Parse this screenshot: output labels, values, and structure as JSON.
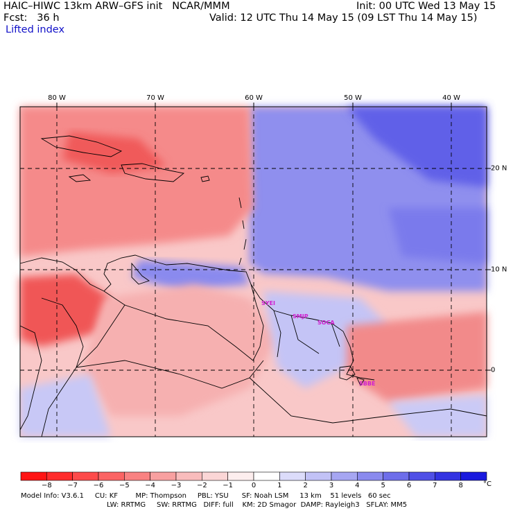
{
  "header": {
    "title": "HAIC–HIWC 13km ARW–GFS init   NCAR/MMM",
    "init": "Init: 00 UTC Wed 13 May 15",
    "forecast": "Fcst:   36 h",
    "valid": "Valid: 12 UTC Thu 14 May 15 (09 LST Thu 14 May 15)",
    "field": "Lifted index"
  },
  "map": {
    "lon_labels": [
      "80 W",
      "70 W",
      "60 W",
      "50 W",
      "40 W"
    ],
    "lat_labels": [
      "20 N",
      "10 N",
      "0"
    ],
    "stations": [
      "SYEI",
      "SMJP",
      "SOCA",
      "SBBE"
    ]
  },
  "colorbar": {
    "ticks": [
      "−8",
      "−7",
      "−6",
      "−5",
      "−4",
      "−3",
      "−2",
      "−1",
      "0",
      "1",
      "2",
      "3",
      "4",
      "5",
      "6",
      "7",
      "8"
    ],
    "unit": "°C",
    "colors": [
      "#ff1414",
      "#ff2c2c",
      "#fd4a4a",
      "#fb6464",
      "#f98282",
      "#f8a0a0",
      "#f9bcbc",
      "#fbd6d6",
      "#fdeeee",
      "#ffffff",
      "#dcdcfa",
      "#c2c2f6",
      "#a6a6f2",
      "#8a8aee",
      "#6e6eea",
      "#5050e6",
      "#3434e2",
      "#1a1ade"
    ]
  },
  "footer": {
    "line1": "Model Info: V3.6.1     CU: KF        MP: Thompson     PBL: YSU      SF: Noah LSM     13 km    51 levels   60 sec",
    "line2": "LW: RRTMG     SW: RRTMG   DIFF: full    KM: 2D Smagor  DAMP: Rayleigh3   SFLAY: MM5"
  }
}
